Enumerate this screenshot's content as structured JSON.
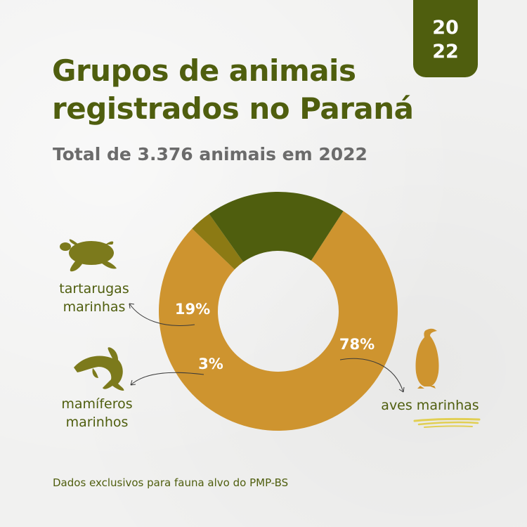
{
  "year_badge": {
    "line1": "20",
    "line2": "22"
  },
  "title": {
    "line1": "Grupos de animais",
    "line2": "registrados no Paraná"
  },
  "subtitle": "Total de 3.376 animais em 2022",
  "labels": {
    "tartarugas": {
      "line1": "tartarugas",
      "line2": "marinhas"
    },
    "mamiferos": {
      "line1": "mamíferos",
      "line2": "marinhos"
    },
    "aves": {
      "line1": "aves marinhas"
    }
  },
  "icons": {
    "turtle": "sea-turtle-icon",
    "dolphin": "dolphin-icon",
    "penguin": "penguin-icon"
  },
  "footnote": "Dados exclusivos para fauna alvo do PMP-BS",
  "colors": {
    "primary": "#4f5e0e",
    "aves": "#ce942f",
    "tartarugas": "#4f5e0e",
    "mamiferos": "#8c7a14",
    "icon_olive": "#7c7a1c",
    "icon_gold": "#ce942f",
    "underline": "#e1cf54"
  },
  "chart_data": {
    "type": "pie",
    "donut": true,
    "series": [
      {
        "name": "aves marinhas",
        "value": 78,
        "label": "78%"
      },
      {
        "name": "mamíferos marinhos",
        "value": 3,
        "label": "3%"
      },
      {
        "name": "tartarugas marinhas",
        "value": 19,
        "label": "19%"
      }
    ],
    "start_angle_deg": -57,
    "direction": "clockwise"
  }
}
